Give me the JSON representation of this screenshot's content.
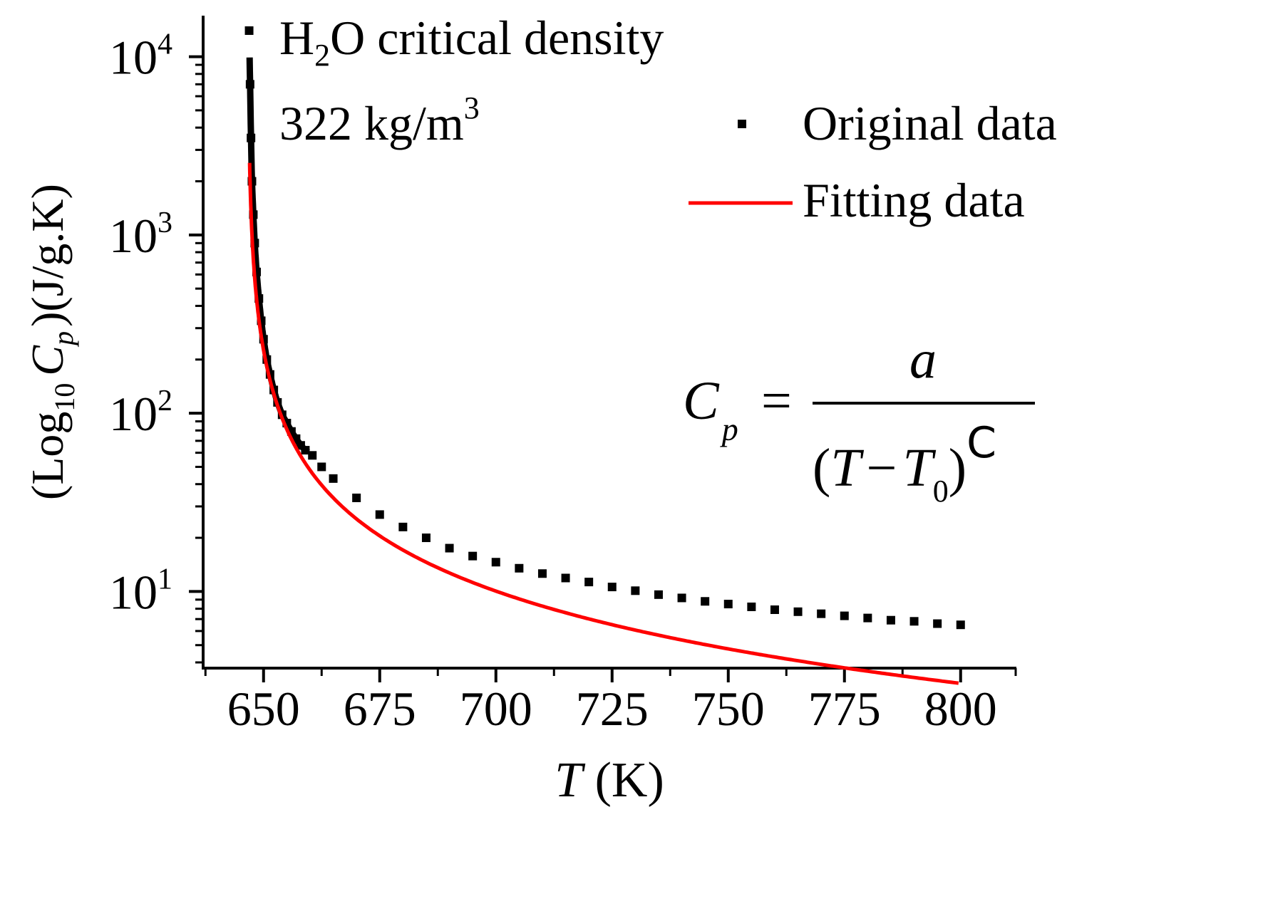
{
  "chart_data": {
    "type": "scatter",
    "title": "",
    "xlabel": {
      "italic": "T",
      "rest": " (K)"
    },
    "ylabel": {
      "open": "(Log",
      "sub": "10",
      "var": "C",
      "varsub": "p",
      "close": ")(J/g.K)"
    },
    "xlim": [
      637,
      812
    ],
    "ylim_log10": [
      0.57,
      4.23
    ],
    "y_scale": "log10",
    "x_ticks": [
      650,
      675,
      700,
      725,
      750,
      775,
      800
    ],
    "x_tick_labels": [
      "650",
      "675",
      "700",
      "725",
      "750",
      "775",
      "800"
    ],
    "y_ticks_log10": [
      1,
      2,
      3,
      4
    ],
    "y_tick_labels": [
      {
        "base": "10",
        "exp": "1"
      },
      {
        "base": "10",
        "exp": "2"
      },
      {
        "base": "10",
        "exp": "3"
      },
      {
        "base": "10",
        "exp": "4"
      }
    ],
    "annotation": {
      "line1": {
        "a": "H",
        "sub": "2",
        "b": "O critical density"
      },
      "line2": {
        "a": "322  kg/m",
        "sup": "3"
      }
    },
    "formula": {
      "lhs": "C",
      "lhs_sub": "p",
      "equals": "=",
      "numerator": "a",
      "den_open": "(",
      "den_T": "T",
      "den_minus": "−",
      "den_T0": "T",
      "den_T0_sub": "0",
      "den_close": ")",
      "den_exp": "C"
    },
    "legend": {
      "position": "top-right",
      "items": [
        {
          "label": "Original data",
          "style": "square-marker",
          "color": "#000000"
        },
        {
          "label": "Fitting data",
          "style": "line",
          "color": "#ff0000"
        }
      ]
    },
    "series": [
      {
        "name": "Original data",
        "color": "#000000",
        "marker": "square",
        "x": [
          646.9,
          647.1,
          647.3,
          647.5,
          647.8,
          648.1,
          648.5,
          649,
          649.5,
          650,
          650.7,
          651.4,
          652.2,
          653,
          654,
          655,
          656,
          657,
          658,
          659,
          660.5,
          662.5,
          665,
          670,
          675,
          680,
          685,
          690,
          695,
          700,
          705,
          710,
          715,
          720,
          725,
          730,
          735,
          740,
          745,
          750,
          755,
          760,
          765,
          770,
          775,
          780,
          785,
          790,
          795,
          800
        ],
        "y": [
          14000,
          7000,
          3500,
          2000,
          1300,
          900,
          620,
          440,
          330,
          260,
          200,
          165,
          135,
          115,
          98,
          88,
          79,
          72,
          66,
          62,
          58,
          50,
          43,
          33.5,
          27,
          23,
          20,
          17.5,
          15.8,
          14.6,
          13.5,
          12.6,
          11.9,
          11.3,
          10.6,
          10.1,
          9.6,
          9.2,
          8.8,
          8.5,
          8.2,
          7.9,
          7.7,
          7.5,
          7.3,
          7.1,
          6.9,
          6.8,
          6.6,
          6.5
        ]
      },
      {
        "name": "Fitting data",
        "color": "#ff0000",
        "line": true,
        "fit": {
          "a": 900,
          "T0": 646.6,
          "c": 1.13
        },
        "x_range": [
          647.0,
          800.0
        ]
      }
    ]
  }
}
